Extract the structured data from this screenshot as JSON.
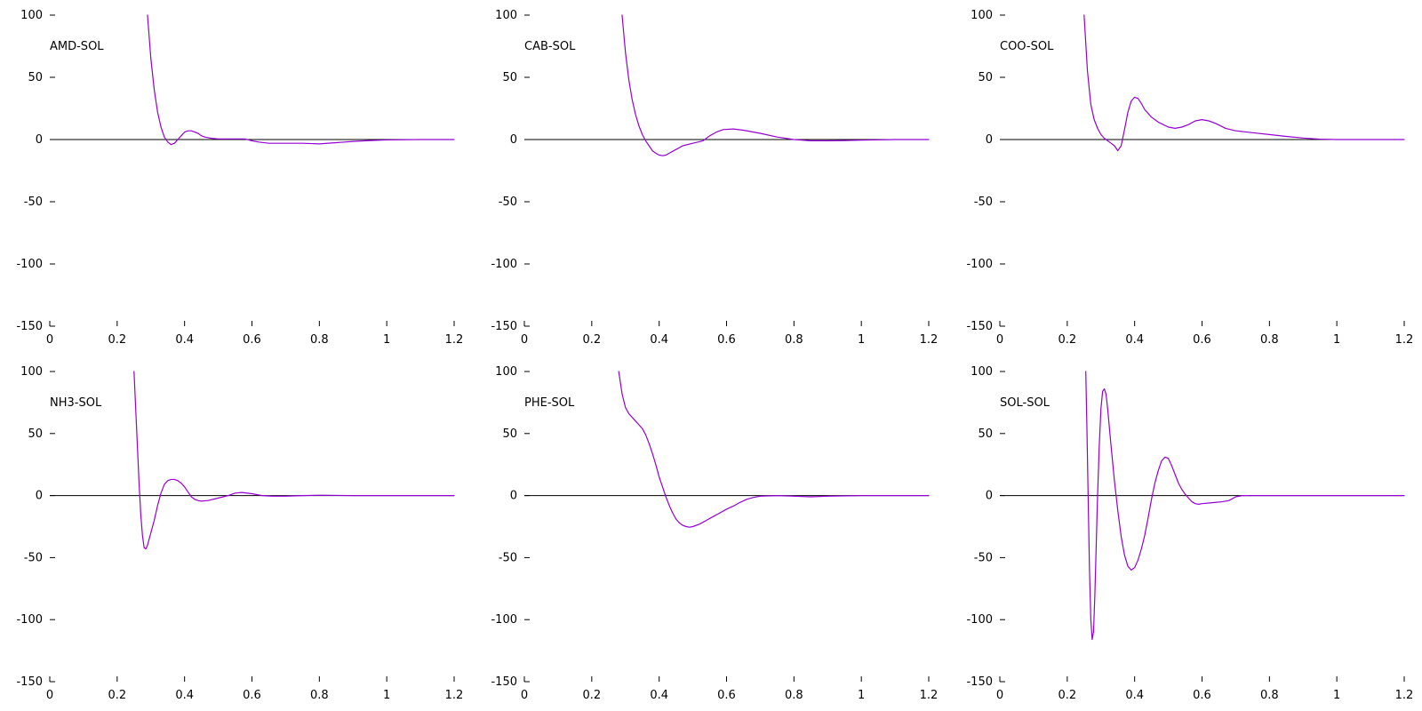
{
  "chart_data": [
    {
      "type": "line",
      "title": "AMD-SOL",
      "xlim": [
        0,
        1.2
      ],
      "ylim": [
        -150,
        100
      ],
      "xticks": [
        "0",
        "0.2",
        "0.4",
        "0.6",
        "0.8",
        "1",
        "1.2"
      ],
      "yticks": [
        "100",
        "50",
        "0",
        "-50",
        "-100",
        "-150"
      ],
      "grid": false,
      "baseline": 0,
      "series": [
        {
          "x": [
            0.29,
            0.3,
            0.31,
            0.32,
            0.33,
            0.34,
            0.35,
            0.36,
            0.37,
            0.38,
            0.39,
            0.4,
            0.41,
            0.42,
            0.43,
            0.44,
            0.45,
            0.46,
            0.48,
            0.5,
            0.54,
            0.58,
            0.6,
            0.62,
            0.65,
            0.7,
            0.75,
            0.8,
            0.85,
            0.9,
            0.95,
            1.0,
            1.1,
            1.2
          ],
          "y": [
            100,
            65,
            40,
            22,
            10,
            2,
            -2,
            -4,
            -3,
            0,
            3,
            6,
            7,
            7,
            6,
            5,
            3,
            2,
            1,
            0.5,
            0.5,
            0.5,
            -1,
            -2,
            -3,
            -3,
            -3,
            -3.5,
            -2.5,
            -1.5,
            -0.8,
            -0.3,
            0,
            0
          ]
        }
      ]
    },
    {
      "type": "line",
      "title": "CAB-SOL",
      "xlim": [
        0,
        1.2
      ],
      "ylim": [
        -150,
        100
      ],
      "xticks": [
        "0",
        "0.2",
        "0.4",
        "0.6",
        "0.8",
        "1",
        "1.2"
      ],
      "yticks": [
        "100",
        "50",
        "0",
        "-50",
        "-100",
        "-150"
      ],
      "grid": false,
      "baseline": 0,
      "series": [
        {
          "x": [
            0.29,
            0.3,
            0.31,
            0.32,
            0.33,
            0.34,
            0.35,
            0.36,
            0.37,
            0.38,
            0.39,
            0.4,
            0.41,
            0.42,
            0.43,
            0.45,
            0.47,
            0.5,
            0.53,
            0.55,
            0.57,
            0.59,
            0.62,
            0.65,
            0.7,
            0.75,
            0.8,
            0.85,
            0.9,
            0.95,
            1.0,
            1.1,
            1.2
          ],
          "y": [
            100,
            70,
            48,
            32,
            20,
            11,
            4,
            -1,
            -5,
            -9,
            -11,
            -12.5,
            -13,
            -12.5,
            -11,
            -8,
            -5,
            -3,
            -1,
            3,
            6,
            8,
            8.5,
            7.5,
            5,
            2,
            0,
            -1,
            -1,
            -0.8,
            -0.5,
            0,
            0
          ]
        }
      ]
    },
    {
      "type": "line",
      "title": "COO-SOL",
      "xlim": [
        0,
        1.2
      ],
      "ylim": [
        -150,
        100
      ],
      "xticks": [
        "0",
        "0.2",
        "0.4",
        "0.6",
        "0.8",
        "1",
        "1.2"
      ],
      "yticks": [
        "100",
        "50",
        "0",
        "-50",
        "-100",
        "-150"
      ],
      "grid": false,
      "baseline": 0,
      "series": [
        {
          "x": [
            0.25,
            0.26,
            0.27,
            0.28,
            0.29,
            0.3,
            0.31,
            0.32,
            0.33,
            0.34,
            0.35,
            0.36,
            0.37,
            0.38,
            0.39,
            0.4,
            0.41,
            0.42,
            0.43,
            0.45,
            0.47,
            0.5,
            0.52,
            0.54,
            0.56,
            0.58,
            0.6,
            0.62,
            0.64,
            0.67,
            0.7,
            0.75,
            0.8,
            0.85,
            0.9,
            0.95,
            1.0,
            1.1,
            1.2
          ],
          "y": [
            100,
            55,
            28,
            16,
            9,
            4,
            1,
            -1,
            -3,
            -5,
            -9,
            -5,
            8,
            22,
            31,
            34,
            33,
            29,
            24,
            18,
            14,
            10,
            9,
            10,
            12,
            15,
            16,
            15,
            13,
            9,
            7,
            5.5,
            4,
            2.5,
            1.2,
            0.3,
            0,
            0,
            0
          ]
        }
      ]
    },
    {
      "type": "line",
      "title": "NH3-SOL",
      "xlim": [
        0,
        1.2
      ],
      "ylim": [
        -150,
        100
      ],
      "xticks": [
        "0",
        "0.2",
        "0.4",
        "0.6",
        "0.8",
        "1",
        "1.2"
      ],
      "yticks": [
        "100",
        "50",
        "0",
        "-50",
        "-100",
        "-150"
      ],
      "grid": false,
      "baseline": 0,
      "series": [
        {
          "x": [
            0.25,
            0.255,
            0.26,
            0.265,
            0.27,
            0.275,
            0.28,
            0.285,
            0.29,
            0.3,
            0.31,
            0.32,
            0.33,
            0.34,
            0.35,
            0.36,
            0.37,
            0.38,
            0.39,
            0.4,
            0.41,
            0.42,
            0.43,
            0.44,
            0.45,
            0.47,
            0.5,
            0.53,
            0.55,
            0.57,
            0.6,
            0.63,
            0.66,
            0.7,
            0.75,
            0.8,
            0.9,
            1.0,
            1.1,
            1.2
          ],
          "y": [
            100,
            70,
            40,
            10,
            -15,
            -32,
            -42,
            -43,
            -40,
            -30,
            -20,
            -8,
            2,
            9,
            12,
            13,
            13,
            12,
            10,
            7,
            3,
            -1,
            -3,
            -4,
            -4.5,
            -4,
            -2,
            0,
            2,
            2.5,
            1.5,
            0,
            -0.5,
            -0.5,
            0,
            0.3,
            0,
            0,
            0,
            0
          ]
        }
      ]
    },
    {
      "type": "line",
      "title": "PHE-SOL",
      "xlim": [
        0,
        1.2
      ],
      "ylim": [
        -150,
        100
      ],
      "xticks": [
        "0",
        "0.2",
        "0.4",
        "0.6",
        "0.8",
        "1",
        "1.2"
      ],
      "yticks": [
        "100",
        "50",
        "0",
        "-50",
        "-100",
        "-150"
      ],
      "grid": false,
      "baseline": 0,
      "series": [
        {
          "x": [
            0.28,
            0.29,
            0.3,
            0.31,
            0.32,
            0.33,
            0.34,
            0.35,
            0.36,
            0.37,
            0.38,
            0.39,
            0.4,
            0.41,
            0.42,
            0.43,
            0.44,
            0.45,
            0.46,
            0.47,
            0.48,
            0.49,
            0.5,
            0.52,
            0.54,
            0.56,
            0.58,
            0.6,
            0.62,
            0.64,
            0.66,
            0.68,
            0.7,
            0.75,
            0.8,
            0.85,
            0.9,
            1.0,
            1.1,
            1.2
          ],
          "y": [
            100,
            82,
            71,
            66,
            63,
            60,
            57,
            54,
            49,
            42,
            34,
            25,
            15,
            7,
            -1,
            -8,
            -14,
            -19,
            -22,
            -24,
            -25,
            -25.5,
            -25,
            -23,
            -20,
            -17,
            -14,
            -11,
            -8.5,
            -5.5,
            -3,
            -1.5,
            -0.5,
            0,
            -0.5,
            -1,
            -0.5,
            0,
            0,
            0
          ]
        }
      ]
    },
    {
      "type": "line",
      "title": "SOL-SOL",
      "xlim": [
        0,
        1.2
      ],
      "ylim": [
        -150,
        100
      ],
      "xticks": [
        "0",
        "0.2",
        "0.4",
        "0.6",
        "0.8",
        "1",
        "1.2"
      ],
      "yticks": [
        "100",
        "50",
        "0",
        "-50",
        "-100",
        "-150"
      ],
      "grid": false,
      "baseline": 0,
      "series": [
        {
          "x": [
            0.255,
            0.258,
            0.262,
            0.266,
            0.27,
            0.274,
            0.278,
            0.282,
            0.286,
            0.29,
            0.295,
            0.3,
            0.305,
            0.31,
            0.315,
            0.32,
            0.325,
            0.33,
            0.34,
            0.35,
            0.36,
            0.37,
            0.38,
            0.39,
            0.4,
            0.41,
            0.42,
            0.43,
            0.44,
            0.45,
            0.46,
            0.47,
            0.48,
            0.49,
            0.5,
            0.51,
            0.52,
            0.53,
            0.54,
            0.55,
            0.56,
            0.57,
            0.58,
            0.59,
            0.6,
            0.62,
            0.64,
            0.66,
            0.68,
            0.7,
            0.72,
            0.75,
            0.8,
            0.83,
            0.86,
            0.88,
            0.9,
            1.0,
            1.1,
            1.2
          ],
          "y": [
            100,
            60,
            0,
            -60,
            -100,
            -116,
            -110,
            -80,
            -40,
            0,
            40,
            70,
            84,
            86,
            82,
            70,
            55,
            40,
            12,
            -12,
            -33,
            -48,
            -57,
            -60,
            -58,
            -52,
            -43,
            -32,
            -18,
            -3,
            10,
            20,
            28,
            31,
            30,
            24,
            17,
            10,
            5,
            1,
            -2,
            -5,
            -6.5,
            -7,
            -6.5,
            -6,
            -5.5,
            -5,
            -4,
            -1,
            0,
            0,
            0,
            0,
            0,
            0,
            0,
            0,
            0,
            0
          ]
        }
      ]
    }
  ]
}
